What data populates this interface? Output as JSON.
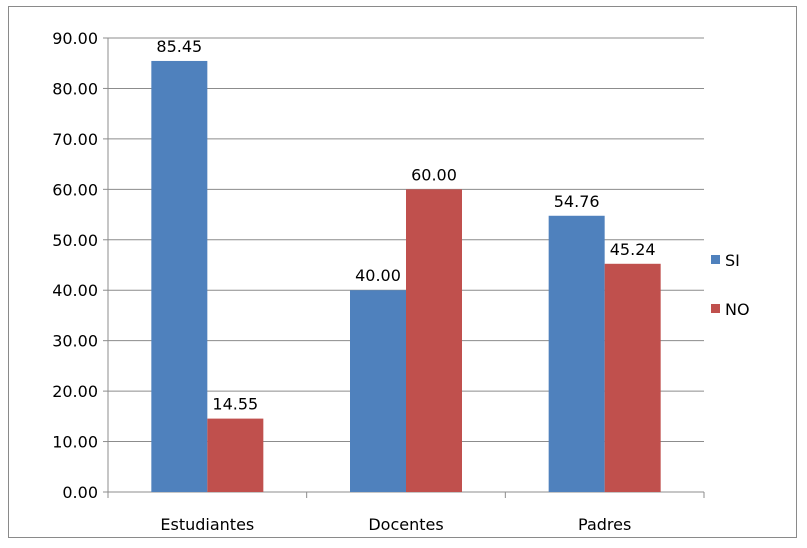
{
  "chart_data": {
    "type": "bar",
    "title": "",
    "xlabel": "",
    "ylabel": "",
    "categories": [
      "Estudiantes",
      "Docentes",
      "Padres"
    ],
    "series": [
      {
        "name": "SI",
        "values": [
          85.45,
          40.0,
          54.76
        ],
        "color": "#4F81BD"
      },
      {
        "name": "NO",
        "values": [
          14.55,
          60.0,
          45.24
        ],
        "color": "#C0504D"
      }
    ],
    "ylim": [
      0,
      90
    ],
    "yticks": [
      "0.00",
      "10.00",
      "20.00",
      "30.00",
      "40.00",
      "50.00",
      "60.00",
      "70.00",
      "80.00",
      "90.00"
    ],
    "data_labels": [
      [
        "85.45",
        "40.00",
        "54.76"
      ],
      [
        "14.55",
        "60.00",
        "45.24"
      ]
    ],
    "grid": true,
    "legend_position": "right"
  }
}
